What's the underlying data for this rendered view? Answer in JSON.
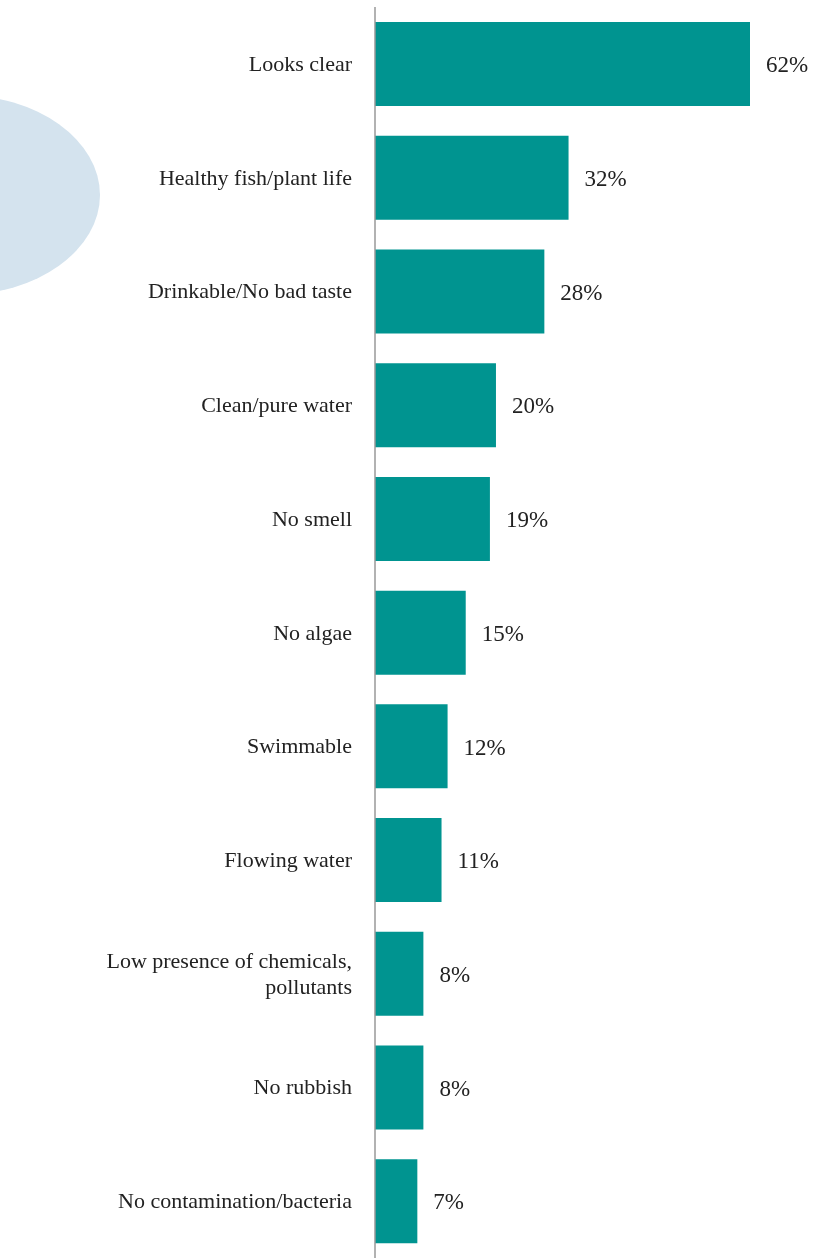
{
  "chart_data": {
    "type": "bar",
    "orientation": "horizontal",
    "categories": [
      "Looks clear",
      "Healthy fish/plant life",
      "Drinkable/No bad taste",
      "Clean/pure water",
      "No smell",
      "No algae",
      "Swimmable",
      "Flowing water",
      "Low presence of chemicals, pollutants",
      "No rubbish",
      "No contamination/bacteria"
    ],
    "values": [
      62,
      32,
      28,
      20,
      19,
      15,
      12,
      11,
      8,
      8,
      7
    ],
    "value_labels": [
      "62%",
      "32%",
      "28%",
      "20%",
      "19%",
      "15%",
      "12%",
      "11%",
      "8%",
      "8%",
      "7%"
    ],
    "color": "#009490",
    "grid": false,
    "legend": false
  }
}
